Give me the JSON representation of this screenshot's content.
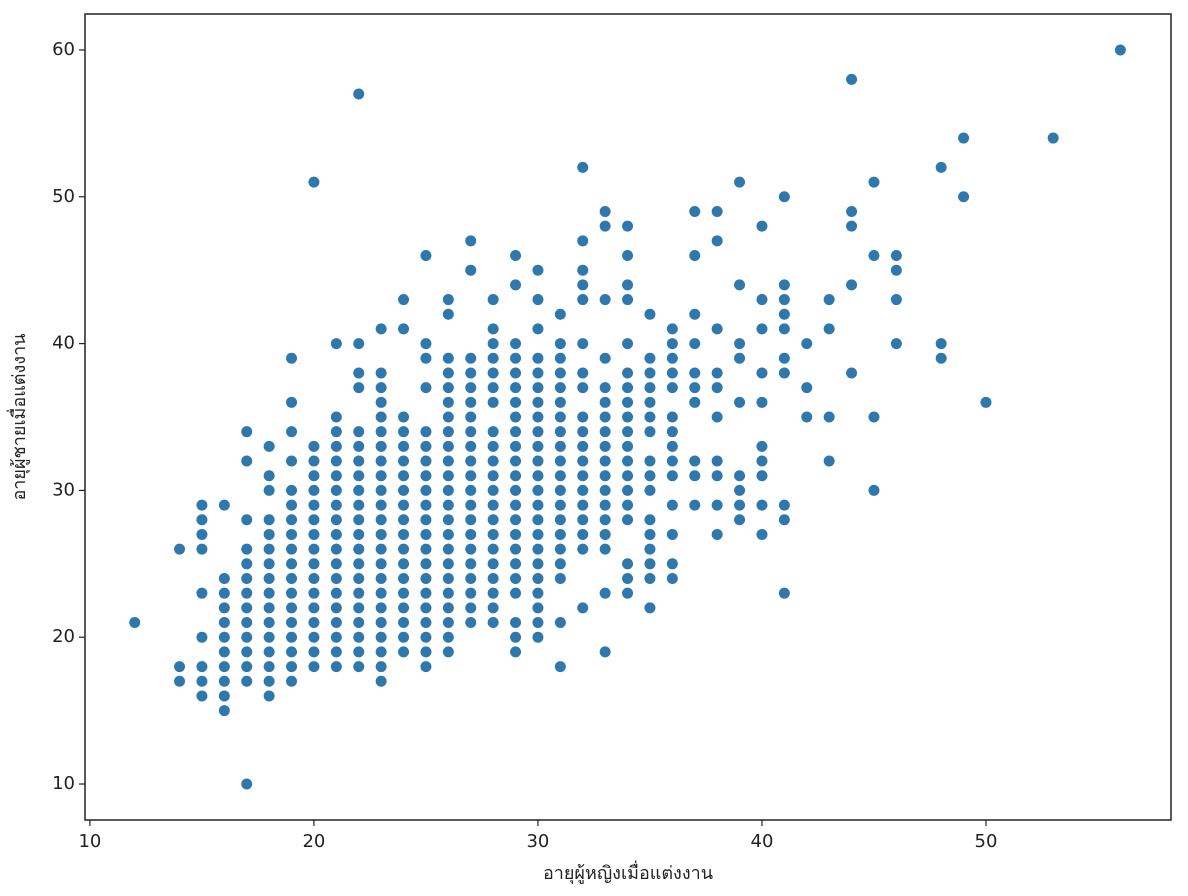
{
  "chart_data": {
    "type": "scatter",
    "x_label": "อายุผู้หญิงเมื่อแต่งงาน",
    "y_label": "อายุผู้ชายเมื่อแต่งงาน",
    "xlim": [
      9.78,
      58.26
    ],
    "ylim": [
      7.55,
      62.45
    ],
    "xticks": [
      10,
      20,
      30,
      40,
      50
    ],
    "yticks": [
      10,
      20,
      30,
      40,
      50,
      60
    ],
    "grid": false,
    "series": [
      {
        "color": "#2e78ad",
        "x": [
          12,
          14,
          14,
          14,
          15,
          15,
          15,
          15,
          15,
          15,
          15,
          15,
          15,
          16,
          16,
          16,
          16,
          16,
          16,
          16,
          16,
          16,
          16,
          16,
          17,
          17,
          17,
          17,
          17,
          17,
          17,
          17,
          17,
          17,
          17,
          17,
          17,
          17,
          18,
          18,
          18,
          18,
          18,
          18,
          18,
          18,
          18,
          18,
          18,
          18,
          18,
          18,
          18,
          18,
          19,
          19,
          19,
          19,
          19,
          19,
          19,
          19,
          19,
          19,
          19,
          19,
          19,
          19,
          19,
          19,
          19,
          19,
          20,
          20,
          20,
          20,
          20,
          20,
          20,
          20,
          20,
          20,
          20,
          20,
          20,
          20,
          20,
          20,
          20,
          21,
          21,
          21,
          21,
          21,
          21,
          21,
          21,
          21,
          21,
          21,
          21,
          21,
          21,
          21,
          21,
          21,
          21,
          21,
          22,
          22,
          22,
          22,
          22,
          22,
          22,
          22,
          22,
          22,
          22,
          22,
          22,
          22,
          22,
          22,
          22,
          22,
          22,
          22,
          22,
          23,
          23,
          23,
          23,
          23,
          23,
          23,
          23,
          23,
          23,
          23,
          23,
          23,
          23,
          23,
          23,
          23,
          23,
          23,
          23,
          23,
          23,
          23,
          24,
          24,
          24,
          24,
          24,
          24,
          24,
          24,
          24,
          24,
          24,
          24,
          24,
          24,
          24,
          24,
          24,
          24,
          24,
          25,
          25,
          25,
          25,
          25,
          25,
          25,
          25,
          25,
          25,
          25,
          25,
          25,
          25,
          25,
          25,
          25,
          25,
          25,
          25,
          25,
          26,
          26,
          26,
          26,
          26,
          26,
          26,
          26,
          26,
          26,
          26,
          26,
          26,
          26,
          26,
          26,
          26,
          26,
          26,
          26,
          26,
          26,
          26,
          27,
          27,
          27,
          27,
          27,
          27,
          27,
          27,
          27,
          27,
          27,
          27,
          27,
          27,
          27,
          27,
          27,
          27,
          27,
          27,
          27,
          28,
          28,
          28,
          28,
          28,
          28,
          28,
          28,
          28,
          28,
          28,
          28,
          28,
          28,
          28,
          28,
          28,
          28,
          28,
          28,
          28,
          29,
          29,
          29,
          29,
          29,
          29,
          29,
          29,
          29,
          29,
          29,
          29,
          29,
          29,
          29,
          29,
          29,
          29,
          29,
          29,
          29,
          29,
          29,
          30,
          30,
          30,
          30,
          30,
          30,
          30,
          30,
          30,
          30,
          30,
          30,
          30,
          30,
          30,
          30,
          30,
          30,
          30,
          30,
          30,
          30,
          30,
          31,
          31,
          31,
          31,
          31,
          31,
          31,
          31,
          31,
          31,
          31,
          31,
          31,
          31,
          31,
          31,
          31,
          31,
          31,
          31,
          32,
          32,
          32,
          32,
          32,
          32,
          32,
          32,
          32,
          32,
          32,
          32,
          32,
          32,
          32,
          32,
          32,
          32,
          32,
          33,
          33,
          33,
          33,
          33,
          33,
          33,
          33,
          33,
          33,
          33,
          33,
          33,
          33,
          33,
          33,
          33,
          33,
          34,
          34,
          34,
          34,
          34,
          34,
          34,
          34,
          34,
          34,
          34,
          34,
          34,
          34,
          34,
          34,
          34,
          34,
          34,
          35,
          35,
          35,
          35,
          35,
          35,
          35,
          35,
          35,
          35,
          35,
          35,
          35,
          35,
          35,
          35,
          36,
          36,
          36,
          36,
          36,
          36,
          36,
          36,
          36,
          36,
          36,
          36,
          36,
          36,
          37,
          37,
          37,
          37,
          37,
          37,
          37,
          37,
          37,
          37,
          38,
          38,
          38,
          38,
          38,
          38,
          38,
          38,
          38,
          38,
          39,
          39,
          39,
          39,
          39,
          39,
          39,
          39,
          39,
          40,
          40,
          40,
          40,
          40,
          40,
          40,
          40,
          40,
          40,
          41,
          41,
          41,
          41,
          41,
          41,
          41,
          41,
          41,
          41,
          42,
          42,
          42,
          43,
          43,
          43,
          43,
          44,
          44,
          44,
          44,
          44,
          45,
          45,
          45,
          45,
          46,
          46,
          46,
          46,
          48,
          48,
          48,
          49,
          49,
          50,
          53,
          56
        ],
        "values": [
          21,
          26,
          18,
          17,
          29,
          28,
          27,
          26,
          23,
          20,
          18,
          17,
          16,
          29,
          24,
          23,
          22,
          21,
          20,
          19,
          18,
          17,
          16,
          15,
          34,
          32,
          28,
          26,
          25,
          24,
          23,
          22,
          21,
          20,
          19,
          18,
          17,
          10,
          33,
          31,
          30,
          28,
          27,
          26,
          25,
          24,
          23,
          22,
          21,
          20,
          19,
          18,
          17,
          16,
          39,
          36,
          34,
          32,
          30,
          29,
          28,
          27,
          26,
          25,
          24,
          23,
          22,
          21,
          20,
          19,
          18,
          17,
          51,
          33,
          32,
          31,
          30,
          29,
          28,
          27,
          26,
          25,
          24,
          23,
          22,
          21,
          20,
          19,
          18,
          40,
          35,
          34,
          33,
          32,
          31,
          30,
          29,
          28,
          27,
          26,
          25,
          24,
          23,
          22,
          21,
          20,
          19,
          18,
          57,
          40,
          38,
          37,
          34,
          33,
          32,
          31,
          30,
          29,
          28,
          27,
          26,
          25,
          24,
          23,
          22,
          21,
          20,
          19,
          18,
          41,
          38,
          37,
          36,
          35,
          34,
          33,
          32,
          31,
          30,
          29,
          28,
          27,
          26,
          25,
          24,
          23,
          22,
          21,
          20,
          19,
          18,
          17,
          43,
          41,
          35,
          34,
          33,
          32,
          31,
          30,
          29,
          28,
          27,
          26,
          25,
          24,
          23,
          22,
          21,
          20,
          19,
          46,
          40,
          39,
          37,
          34,
          33,
          32,
          31,
          30,
          29,
          28,
          27,
          26,
          25,
          24,
          23,
          22,
          21,
          20,
          19,
          18,
          43,
          42,
          39,
          38,
          37,
          36,
          35,
          34,
          33,
          32,
          31,
          30,
          29,
          28,
          27,
          26,
          25,
          24,
          23,
          22,
          21,
          20,
          19,
          47,
          45,
          39,
          38,
          37,
          36,
          35,
          34,
          33,
          32,
          31,
          30,
          29,
          28,
          27,
          26,
          25,
          24,
          23,
          22,
          21,
          43,
          41,
          40,
          39,
          38,
          37,
          36,
          34,
          33,
          32,
          31,
          30,
          29,
          28,
          27,
          26,
          25,
          24,
          23,
          22,
          21,
          46,
          44,
          40,
          39,
          38,
          37,
          36,
          35,
          34,
          33,
          32,
          31,
          30,
          29,
          28,
          27,
          26,
          25,
          24,
          23,
          21,
          20,
          19,
          45,
          43,
          41,
          39,
          38,
          37,
          36,
          35,
          34,
          33,
          32,
          31,
          30,
          29,
          28,
          27,
          26,
          25,
          24,
          23,
          22,
          21,
          20,
          42,
          40,
          39,
          38,
          37,
          36,
          35,
          34,
          33,
          32,
          31,
          30,
          29,
          28,
          27,
          26,
          25,
          24,
          21,
          18,
          52,
          47,
          45,
          44,
          43,
          40,
          38,
          37,
          35,
          34,
          33,
          32,
          31,
          30,
          29,
          28,
          27,
          26,
          22,
          49,
          48,
          43,
          39,
          37,
          36,
          35,
          34,
          33,
          32,
          31,
          30,
          29,
          28,
          27,
          26,
          23,
          19,
          48,
          46,
          44,
          43,
          40,
          38,
          37,
          36,
          35,
          34,
          33,
          32,
          31,
          30,
          29,
          28,
          25,
          24,
          23,
          42,
          39,
          38,
          37,
          36,
          35,
          34,
          32,
          31,
          30,
          28,
          27,
          26,
          25,
          24,
          22,
          41,
          40,
          39,
          38,
          37,
          35,
          34,
          33,
          32,
          31,
          29,
          27,
          25,
          24,
          49,
          46,
          42,
          40,
          38,
          37,
          36,
          32,
          31,
          29,
          49,
          47,
          41,
          38,
          37,
          35,
          32,
          31,
          29,
          27,
          51,
          44,
          40,
          39,
          36,
          31,
          30,
          29,
          28,
          48,
          43,
          41,
          38,
          36,
          33,
          32,
          31,
          29,
          27,
          50,
          44,
          43,
          42,
          41,
          39,
          38,
          29,
          28,
          23,
          40,
          37,
          35,
          43,
          41,
          35,
          32,
          58,
          49,
          48,
          44,
          38,
          51,
          46,
          35,
          30,
          46,
          45,
          43,
          40,
          52,
          40,
          39,
          54,
          50,
          36,
          54,
          60
        ]
      }
    ]
  }
}
